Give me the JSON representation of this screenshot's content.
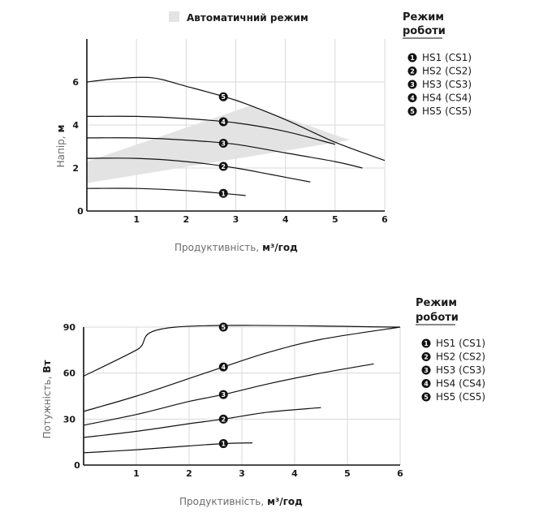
{
  "chart_data": [
    {
      "type": "line",
      "title": "",
      "band_label": "Автоматичний режим",
      "xlabel": "Продуктивність,",
      "xlabel_unit": "м³/год",
      "ylabel": "Напір,",
      "ylabel_unit": "м",
      "xlim": [
        0,
        6
      ],
      "ylim": [
        0,
        8
      ],
      "x_ticks": [
        "0",
        "1",
        "2",
        "3",
        "4",
        "5",
        "6"
      ],
      "y_ticks": [
        "2",
        "4",
        "6"
      ],
      "legend_title": "Режим роботи",
      "legend": [
        "HS1 (CS1)",
        "HS2 (CS2)",
        "HS3 (CS3)",
        "HS4 (CS4)",
        "HS5 (CS5)"
      ],
      "auto_band": {
        "upper": [
          [
            0,
            2.3
          ],
          [
            3.3,
            4.9
          ],
          [
            5.3,
            3.3
          ]
        ],
        "lower": [
          [
            0,
            1.3
          ],
          [
            5.3,
            3.3
          ]
        ]
      },
      "series": [
        {
          "name": "HS1 (CS1)",
          "marker": "1",
          "marker_x": 2.75,
          "points": [
            [
              0,
              1.05
            ],
            [
              1,
              1.05
            ],
            [
              2,
              0.95
            ],
            [
              2.75,
              0.82
            ],
            [
              3.2,
              0.72
            ]
          ]
        },
        {
          "name": "HS2 (CS2)",
          "marker": "2",
          "marker_x": 2.75,
          "points": [
            [
              0,
              2.45
            ],
            [
              1,
              2.45
            ],
            [
              2,
              2.3
            ],
            [
              3,
              2.0
            ],
            [
              3.7,
              1.7
            ],
            [
              4.5,
              1.35
            ]
          ]
        },
        {
          "name": "HS3 (CS3)",
          "marker": "3",
          "marker_x": 2.75,
          "points": [
            [
              0,
              3.4
            ],
            [
              1,
              3.4
            ],
            [
              2,
              3.3
            ],
            [
              3,
              3.1
            ],
            [
              4,
              2.7
            ],
            [
              5,
              2.3
            ],
            [
              5.55,
              2.0
            ]
          ]
        },
        {
          "name": "HS4 (CS4)",
          "marker": "4",
          "marker_x": 2.75,
          "points": [
            [
              0,
              4.4
            ],
            [
              1,
              4.4
            ],
            [
              2,
              4.3
            ],
            [
              3,
              4.1
            ],
            [
              4,
              3.7
            ],
            [
              5,
              3.1
            ]
          ]
        },
        {
          "name": "HS5 (CS5)",
          "marker": "5",
          "marker_x": 2.75,
          "points": [
            [
              0,
              6.0
            ],
            [
              0.6,
              6.15
            ],
            [
              1.3,
              6.2
            ],
            [
              2,
              5.8
            ],
            [
              3,
              5.15
            ],
            [
              4,
              4.25
            ],
            [
              5,
              3.2
            ],
            [
              6,
              2.35
            ]
          ]
        }
      ]
    },
    {
      "type": "line",
      "title": "",
      "xlabel": "Продуктивність,",
      "xlabel_unit": "м³/год",
      "ylabel": "Потужність,",
      "ylabel_unit": "Вт",
      "xlim": [
        0,
        6
      ],
      "ylim": [
        0,
        90
      ],
      "x_ticks": [
        "0",
        "1",
        "2",
        "3",
        "4",
        "5",
        "6"
      ],
      "y_ticks": [
        "30",
        "60",
        "90"
      ],
      "legend_title": "Режим роботи",
      "legend": [
        "HS1 (CS1)",
        "HS2 (CS2)",
        "HS3 (CS3)",
        "HS4 (CS4)",
        "HS5 (CS5)"
      ],
      "series": [
        {
          "name": "HS1 (CS1)",
          "marker": "1",
          "marker_x": 2.65,
          "points": [
            [
              0,
              8
            ],
            [
              1,
              10
            ],
            [
              2,
              12.5
            ],
            [
              2.65,
              14
            ],
            [
              3.2,
              14.5
            ]
          ]
        },
        {
          "name": "HS2 (CS2)",
          "marker": "2",
          "marker_x": 2.65,
          "points": [
            [
              0,
              18
            ],
            [
              1,
              22
            ],
            [
              2,
              27
            ],
            [
              2.65,
              30
            ],
            [
              3.5,
              34.5
            ],
            [
              4.5,
              37.5
            ]
          ]
        },
        {
          "name": "HS3 (CS3)",
          "marker": "3",
          "marker_x": 2.65,
          "points": [
            [
              0,
              26
            ],
            [
              1,
              33
            ],
            [
              2,
              41.5
            ],
            [
              2.65,
              46
            ],
            [
              3.5,
              53
            ],
            [
              4.5,
              60
            ],
            [
              5.5,
              66
            ]
          ]
        },
        {
          "name": "HS4 (CS4)",
          "marker": "4",
          "marker_x": 2.65,
          "points": [
            [
              0,
              35
            ],
            [
              1,
              45
            ],
            [
              2,
              56.5
            ],
            [
              2.65,
              64
            ],
            [
              3.5,
              73.5
            ],
            [
              4.5,
              82
            ],
            [
              6,
              90
            ]
          ]
        },
        {
          "name": "HS5 (CS5)",
          "marker": "5",
          "marker_x": 2.65,
          "points": [
            [
              0,
              58
            ],
            [
              1,
              75
            ],
            [
              1.75,
              90
            ],
            [
              6,
              90
            ]
          ]
        }
      ]
    }
  ]
}
